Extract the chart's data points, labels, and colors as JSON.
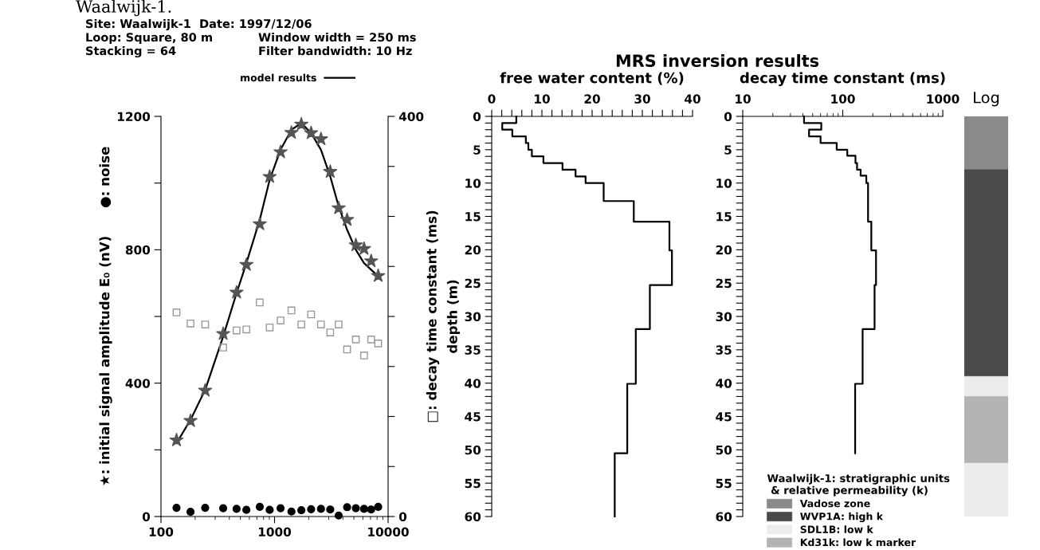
{
  "chart_data": [
    {
      "type": "scatter",
      "title": "Site: Waalwijk-1  Date: 1997/12/06",
      "annotations": [
        "Waalwijk-1.",
        "Loop: Square, 80 m",
        "Window width = 250 ms",
        "Stacking = 64",
        "Filter bandwidth: 10 Hz"
      ],
      "ylabel": "★: initial signal amplitude E₀ (nV)      ●: noise",
      "y2label": "□: decay time constant (ms)",
      "log": "x",
      "xlim": [
        100,
        10000
      ],
      "xticks": [
        100,
        1000,
        10000
      ],
      "ylim": [
        0,
        1200
      ],
      "yticks": [
        0,
        {
          "value": 200,
          "label": null
        },
        400,
        {
          "value": 600,
          "label": null
        },
        800,
        {
          "value": 1000,
          "label": null
        },
        1200
      ],
      "y2lim": [
        0,
        400
      ],
      "y2ticks": [
        0,
        {
          "value": 50,
          "label": null
        },
        {
          "value": 100,
          "label": null
        },
        {
          "value": 150,
          "label": null
        },
        {
          "value": 200,
          "label": null
        },
        {
          "value": 250,
          "label": null
        },
        {
          "value": 300,
          "label": null
        },
        {
          "value": 350,
          "label": null
        },
        400
      ],
      "legend": "top",
      "grid": false,
      "x": [
        137,
        182,
        245,
        353,
        463,
        565,
        741,
        906,
        1130,
        1409,
        1722,
        2099,
        2563,
        3093,
        3669,
        4355,
        5200,
        6140,
        7090,
        8180
      ],
      "series": [
        {
          "name": "model results",
          "type": "line",
          "color": "#000000",
          "marker": "none",
          "x": [
            137,
            182,
            245,
            353,
            463,
            565,
            741,
            906,
            1130,
            1409,
            1722,
            2099,
            2563,
            3093,
            3669,
            4355,
            5200,
            6140,
            7090,
            8180
          ],
          "values": [
            220,
            290,
            380,
            540,
            670,
            760,
            890,
            1010,
            1100,
            1160,
            1180,
            1150,
            1100,
            1020,
            930,
            860,
            800,
            760,
            740,
            720
          ]
        },
        {
          "color": "#555555",
          "marker": "star",
          "values": [
            229,
            287,
            378,
            548,
            672,
            755,
            877,
            1019,
            1093,
            1151,
            1176,
            1150,
            1132,
            1034,
            925,
            890,
            814,
            803,
            766,
            722
          ]
        },
        {
          "color": "#000000",
          "marker": "circle",
          "values": [
            26,
            14,
            26,
            25,
            23,
            20,
            29,
            20,
            25,
            15,
            19,
            22,
            23,
            21,
            3,
            28,
            25,
            23,
            21,
            29
          ]
        },
        {
          "color": "#999999",
          "marker": "square",
          "axis": "y2",
          "values": [
            204,
            193,
            192,
            169,
            186,
            187,
            214,
            189,
            196,
            206,
            192,
            202,
            192,
            184,
            192,
            167,
            177,
            161,
            177,
            173
          ]
        }
      ]
    },
    {
      "type": "line",
      "title": "MRS inversion results",
      "xlabel": "free water content (%)",
      "ylabel": "depth (m)",
      "xlim": [
        0,
        40
      ],
      "xticks": [
        0,
        {
          "value": 2,
          "label": null
        },
        {
          "value": 4,
          "label": null
        },
        {
          "value": 6,
          "label": null
        },
        {
          "value": 8,
          "label": null
        },
        10,
        {
          "value": 12,
          "label": null
        },
        {
          "value": 14,
          "label": null
        },
        {
          "value": 16,
          "label": null
        },
        {
          "value": 18,
          "label": null
        },
        20,
        {
          "value": 22,
          "label": null
        },
        {
          "value": 24,
          "label": null
        },
        {
          "value": 26,
          "label": null
        },
        {
          "value": 28,
          "label": null
        },
        30,
        {
          "value": 32,
          "label": null
        },
        {
          "value": 34,
          "label": null
        },
        {
          "value": 36,
          "label": null
        },
        {
          "value": 38,
          "label": null
        },
        40
      ],
      "ylim": [
        60,
        0
      ],
      "yticks": [
        0,
        {
          "value": 1,
          "label": null
        },
        {
          "value": 2,
          "label": null
        },
        {
          "value": 3,
          "label": null
        },
        {
          "value": 4,
          "label": null
        },
        5,
        {
          "value": 6,
          "label": null
        },
        {
          "value": 7,
          "label": null
        },
        {
          "value": 8,
          "label": null
        },
        {
          "value": 9,
          "label": null
        },
        10,
        {
          "value": 11,
          "label": null
        },
        {
          "value": 12,
          "label": null
        },
        {
          "value": 13,
          "label": null
        },
        {
          "value": 14,
          "label": null
        },
        15,
        {
          "value": 16,
          "label": null
        },
        {
          "value": 17,
          "label": null
        },
        {
          "value": 18,
          "label": null
        },
        {
          "value": 19,
          "label": null
        },
        20,
        {
          "value": 21,
          "label": null
        },
        {
          "value": 22,
          "label": null
        },
        {
          "value": 23,
          "label": null
        },
        {
          "value": 24,
          "label": null
        },
        25,
        {
          "value": 26,
          "label": null
        },
        {
          "value": 27,
          "label": null
        },
        {
          "value": 28,
          "label": null
        },
        {
          "value": 29,
          "label": null
        },
        30,
        {
          "value": 31,
          "label": null
        },
        {
          "value": 32,
          "label": null
        },
        {
          "value": 33,
          "label": null
        },
        {
          "value": 34,
          "label": null
        },
        35,
        {
          "value": 36,
          "label": null
        },
        {
          "value": 37,
          "label": null
        },
        {
          "value": 38,
          "label": null
        },
        {
          "value": 39,
          "label": null
        },
        40,
        {
          "value": 41,
          "label": null
        },
        {
          "value": 42,
          "label": null
        },
        {
          "value": 43,
          "label": null
        },
        {
          "value": 44,
          "label": null
        },
        45,
        {
          "value": 46,
          "label": null
        },
        {
          "value": 47,
          "label": null
        },
        {
          "value": 48,
          "label": null
        },
        {
          "value": 49,
          "label": null
        },
        50,
        {
          "value": 51,
          "label": null
        },
        {
          "value": 52,
          "label": null
        },
        {
          "value": 53,
          "label": null
        },
        {
          "value": 54,
          "label": null
        },
        55,
        {
          "value": 56,
          "label": null
        },
        {
          "value": 57,
          "label": null
        },
        {
          "value": 58,
          "label": null
        },
        {
          "value": 59,
          "label": null
        },
        60
      ],
      "grid": false,
      "series": [
        {
          "color": "#000000",
          "x": [
            4.9,
            4.9,
            2.1,
            2.1,
            4.1,
            4.1,
            6.8,
            6.8,
            7.3,
            7.3,
            8.0,
            8.0,
            10.3,
            10.3,
            14.1,
            14.1,
            16.7,
            16.7,
            18.7,
            18.7,
            22.3,
            22.3,
            28.3,
            28.3,
            35.4,
            35.4,
            35.9,
            35.9,
            31.5,
            31.5,
            28.7,
            28.7,
            27.0,
            27.0,
            24.5,
            24.5
          ],
          "values": [
            0,
            1,
            1,
            2,
            2,
            3,
            3,
            4,
            4,
            5,
            5,
            6,
            6,
            7,
            7,
            8,
            8,
            9,
            9,
            10,
            10,
            12.7,
            12.7,
            15.8,
            15.8,
            20.1,
            20.1,
            25.3,
            25.3,
            31.9,
            31.9,
            40.1,
            40.1,
            50.5,
            50.5,
            60
          ]
        }
      ]
    },
    {
      "type": "line",
      "xlabel": "decay time constant (ms)",
      "log": "x",
      "xlim": [
        10,
        1000
      ],
      "xticks": [
        10,
        100,
        1000
      ],
      "ylim": [
        60,
        0
      ],
      "yticks": [
        0,
        {
          "value": 1,
          "label": null
        },
        {
          "value": 2,
          "label": null
        },
        {
          "value": 3,
          "label": null
        },
        {
          "value": 4,
          "label": null
        },
        5,
        {
          "value": 6,
          "label": null
        },
        {
          "value": 7,
          "label": null
        },
        {
          "value": 8,
          "label": null
        },
        {
          "value": 9,
          "label": null
        },
        10,
        {
          "value": 11,
          "label": null
        },
        {
          "value": 12,
          "label": null
        },
        {
          "value": 13,
          "label": null
        },
        {
          "value": 14,
          "label": null
        },
        15,
        {
          "value": 16,
          "label": null
        },
        {
          "value": 17,
          "label": null
        },
        {
          "value": 18,
          "label": null
        },
        {
          "value": 19,
          "label": null
        },
        20,
        {
          "value": 21,
          "label": null
        },
        {
          "value": 22,
          "label": null
        },
        {
          "value": 23,
          "label": null
        },
        {
          "value": 24,
          "label": null
        },
        25,
        {
          "value": 26,
          "label": null
        },
        {
          "value": 27,
          "label": null
        },
        {
          "value": 28,
          "label": null
        },
        {
          "value": 29,
          "label": null
        },
        30,
        {
          "value": 31,
          "label": null
        },
        {
          "value": 32,
          "label": null
        },
        {
          "value": 33,
          "label": null
        },
        {
          "value": 34,
          "label": null
        },
        35,
        {
          "value": 36,
          "label": null
        },
        {
          "value": 37,
          "label": null
        },
        {
          "value": 38,
          "label": null
        },
        {
          "value": 39,
          "label": null
        },
        40,
        {
          "value": 41,
          "label": null
        },
        {
          "value": 42,
          "label": null
        },
        {
          "value": 43,
          "label": null
        },
        {
          "value": 44,
          "label": null
        },
        45,
        {
          "value": 46,
          "label": null
        },
        {
          "value": 47,
          "label": null
        },
        {
          "value": 48,
          "label": null
        },
        {
          "value": 49,
          "label": null
        },
        50,
        {
          "value": 51,
          "label": null
        },
        {
          "value": 52,
          "label": null
        },
        {
          "value": 53,
          "label": null
        },
        {
          "value": 54,
          "label": null
        },
        55,
        {
          "value": 56,
          "label": null
        },
        {
          "value": 57,
          "label": null
        },
        {
          "value": 58,
          "label": null
        },
        {
          "value": 59,
          "label": null
        },
        60
      ],
      "grid": false,
      "series": [
        {
          "color": "#000000",
          "x": [
            41,
            41,
            61,
            61,
            46,
            46,
            60,
            60,
            87,
            87,
            111,
            111,
            134,
            134,
            139,
            139,
            151,
            151,
            172,
            172,
            179,
            179,
            193,
            193,
            215,
            215,
            208,
            208,
            158,
            158,
            133,
            133
          ],
          "values": [
            0,
            1,
            1,
            2,
            2,
            3,
            3,
            4,
            4,
            5,
            5,
            5.9,
            5.9,
            7,
            7,
            8,
            8,
            8.9,
            8.9,
            10,
            10,
            15.8,
            15.8,
            20.1,
            20.1,
            25.3,
            25.3,
            31.9,
            31.9,
            40.1,
            40.1,
            50.5
          ]
        }
      ]
    },
    {
      "type": "bar",
      "title": "Log",
      "stacked": true,
      "categories": [
        null
      ],
      "ylim": [
        60,
        0
      ],
      "tick_labels": false,
      "legend": "bottom left",
      "legend_title": "Waalwijk-1: stratigraphic units\n & relative permeability (k)",
      "series": [
        {
          "name": "Vadose zone",
          "color": "#8a8a8a",
          "values": [
            8
          ]
        },
        {
          "name": "WVP1A: high k",
          "color": "#4a4a4a",
          "values": [
            31
          ]
        },
        {
          "name": "SDL1B: low k",
          "color": "#ececec",
          "values": [
            3
          ]
        },
        {
          "name": "Kd31k: low k marker",
          "color": "#b4b4b4",
          "values": [
            10
          ]
        },
        {
          "color": "#ececec",
          "values": [
            8
          ]
        }
      ]
    }
  ]
}
